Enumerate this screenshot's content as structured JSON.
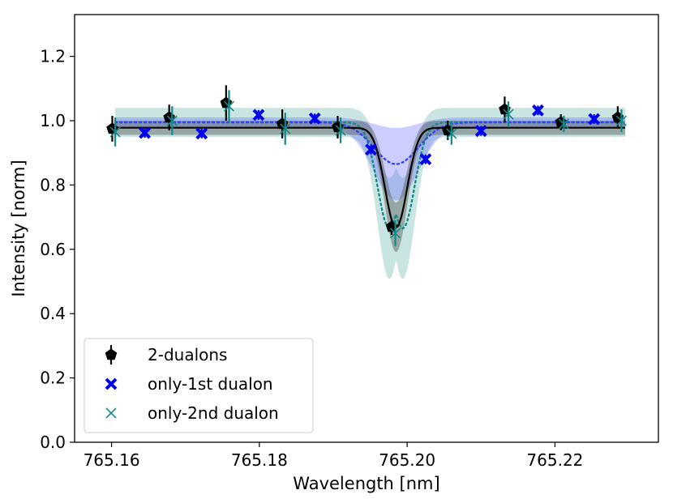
{
  "chart_data": {
    "type": "scatter",
    "title": "",
    "xlabel": "Wavelength [nm]",
    "ylabel": "Intensity [norm]",
    "xlim": [
      765.155,
      765.234
    ],
    "ylim": [
      0.0,
      1.33
    ],
    "xticks": [
      765.16,
      765.18,
      765.2,
      765.22
    ],
    "xtick_labels": [
      "765.16",
      "765.18",
      "765.20",
      "765.22"
    ],
    "yticks": [
      0.0,
      0.2,
      0.4,
      0.6,
      0.8,
      1.0,
      1.2
    ],
    "ytick_labels": [
      "0.0",
      "0.2",
      "0.4",
      "0.6",
      "0.8",
      "1.0",
      "1.2"
    ],
    "grid": false,
    "legend_position": "lower-left",
    "series": [
      {
        "name": "2-dualons",
        "color": "#000000",
        "marker": "pentagon",
        "x": [
          765.1601,
          765.1678,
          765.1755,
          765.1831,
          765.1906,
          765.1979,
          765.2055,
          765.2132,
          765.2208,
          765.2285
        ],
        "y": [
          0.975,
          1.01,
          1.055,
          0.99,
          0.98,
          0.67,
          0.97,
          1.035,
          0.995,
          1.01
        ],
        "yerr": [
          0.04,
          0.04,
          0.055,
          0.045,
          0.035,
          0.025,
          0.03,
          0.04,
          0.025,
          0.035
        ]
      },
      {
        "name": "only-1st dualon",
        "color": "#0000ee",
        "marker": "plus",
        "x": [
          765.1645,
          765.1722,
          765.1799,
          765.1875,
          765.1951,
          765.2025,
          765.21,
          765.2177,
          765.2253
        ],
        "y": [
          0.962,
          0.96,
          1.018,
          1.007,
          0.91,
          0.88,
          0.968,
          1.032,
          1.005
        ],
        "yerr": [
          0.015,
          0.015,
          0.015,
          0.015,
          0.015,
          0.015,
          0.015,
          0.015,
          0.015
        ]
      },
      {
        "name": "only-2nd dualon",
        "color": "#138a8a",
        "marker": "x",
        "x": [
          765.1605,
          765.1682,
          765.1759,
          765.1835,
          765.191,
          765.1984,
          765.206,
          765.2137,
          765.2212,
          765.229
        ],
        "y": [
          0.965,
          1.0,
          1.045,
          0.975,
          0.97,
          0.65,
          0.96,
          1.02,
          0.99,
          1.0
        ],
        "yerr": [
          0.045,
          0.045,
          0.05,
          0.05,
          0.04,
          0.04,
          0.035,
          0.04,
          0.025,
          0.035
        ]
      }
    ],
    "model_curves": [
      {
        "series": "2-dualons",
        "color": "#000000",
        "line": "solid",
        "baseline": 0.978,
        "center": 765.1985,
        "depth": 0.31,
        "sigma": 0.0015,
        "band": 0.022
      },
      {
        "series": "only-1st dualon",
        "color": "#3344ff",
        "line": "dotted",
        "baseline": 0.995,
        "center": 765.1985,
        "depth": 0.13,
        "sigma": 0.003,
        "band": 0.015
      },
      {
        "series": "only-2nd dualon",
        "color": "#138a8a",
        "line": "dotted",
        "baseline": 0.995,
        "center": 765.1985,
        "depth": 0.33,
        "sigma": 0.0016,
        "band": 0.045,
        "split": 0.0009
      }
    ]
  }
}
